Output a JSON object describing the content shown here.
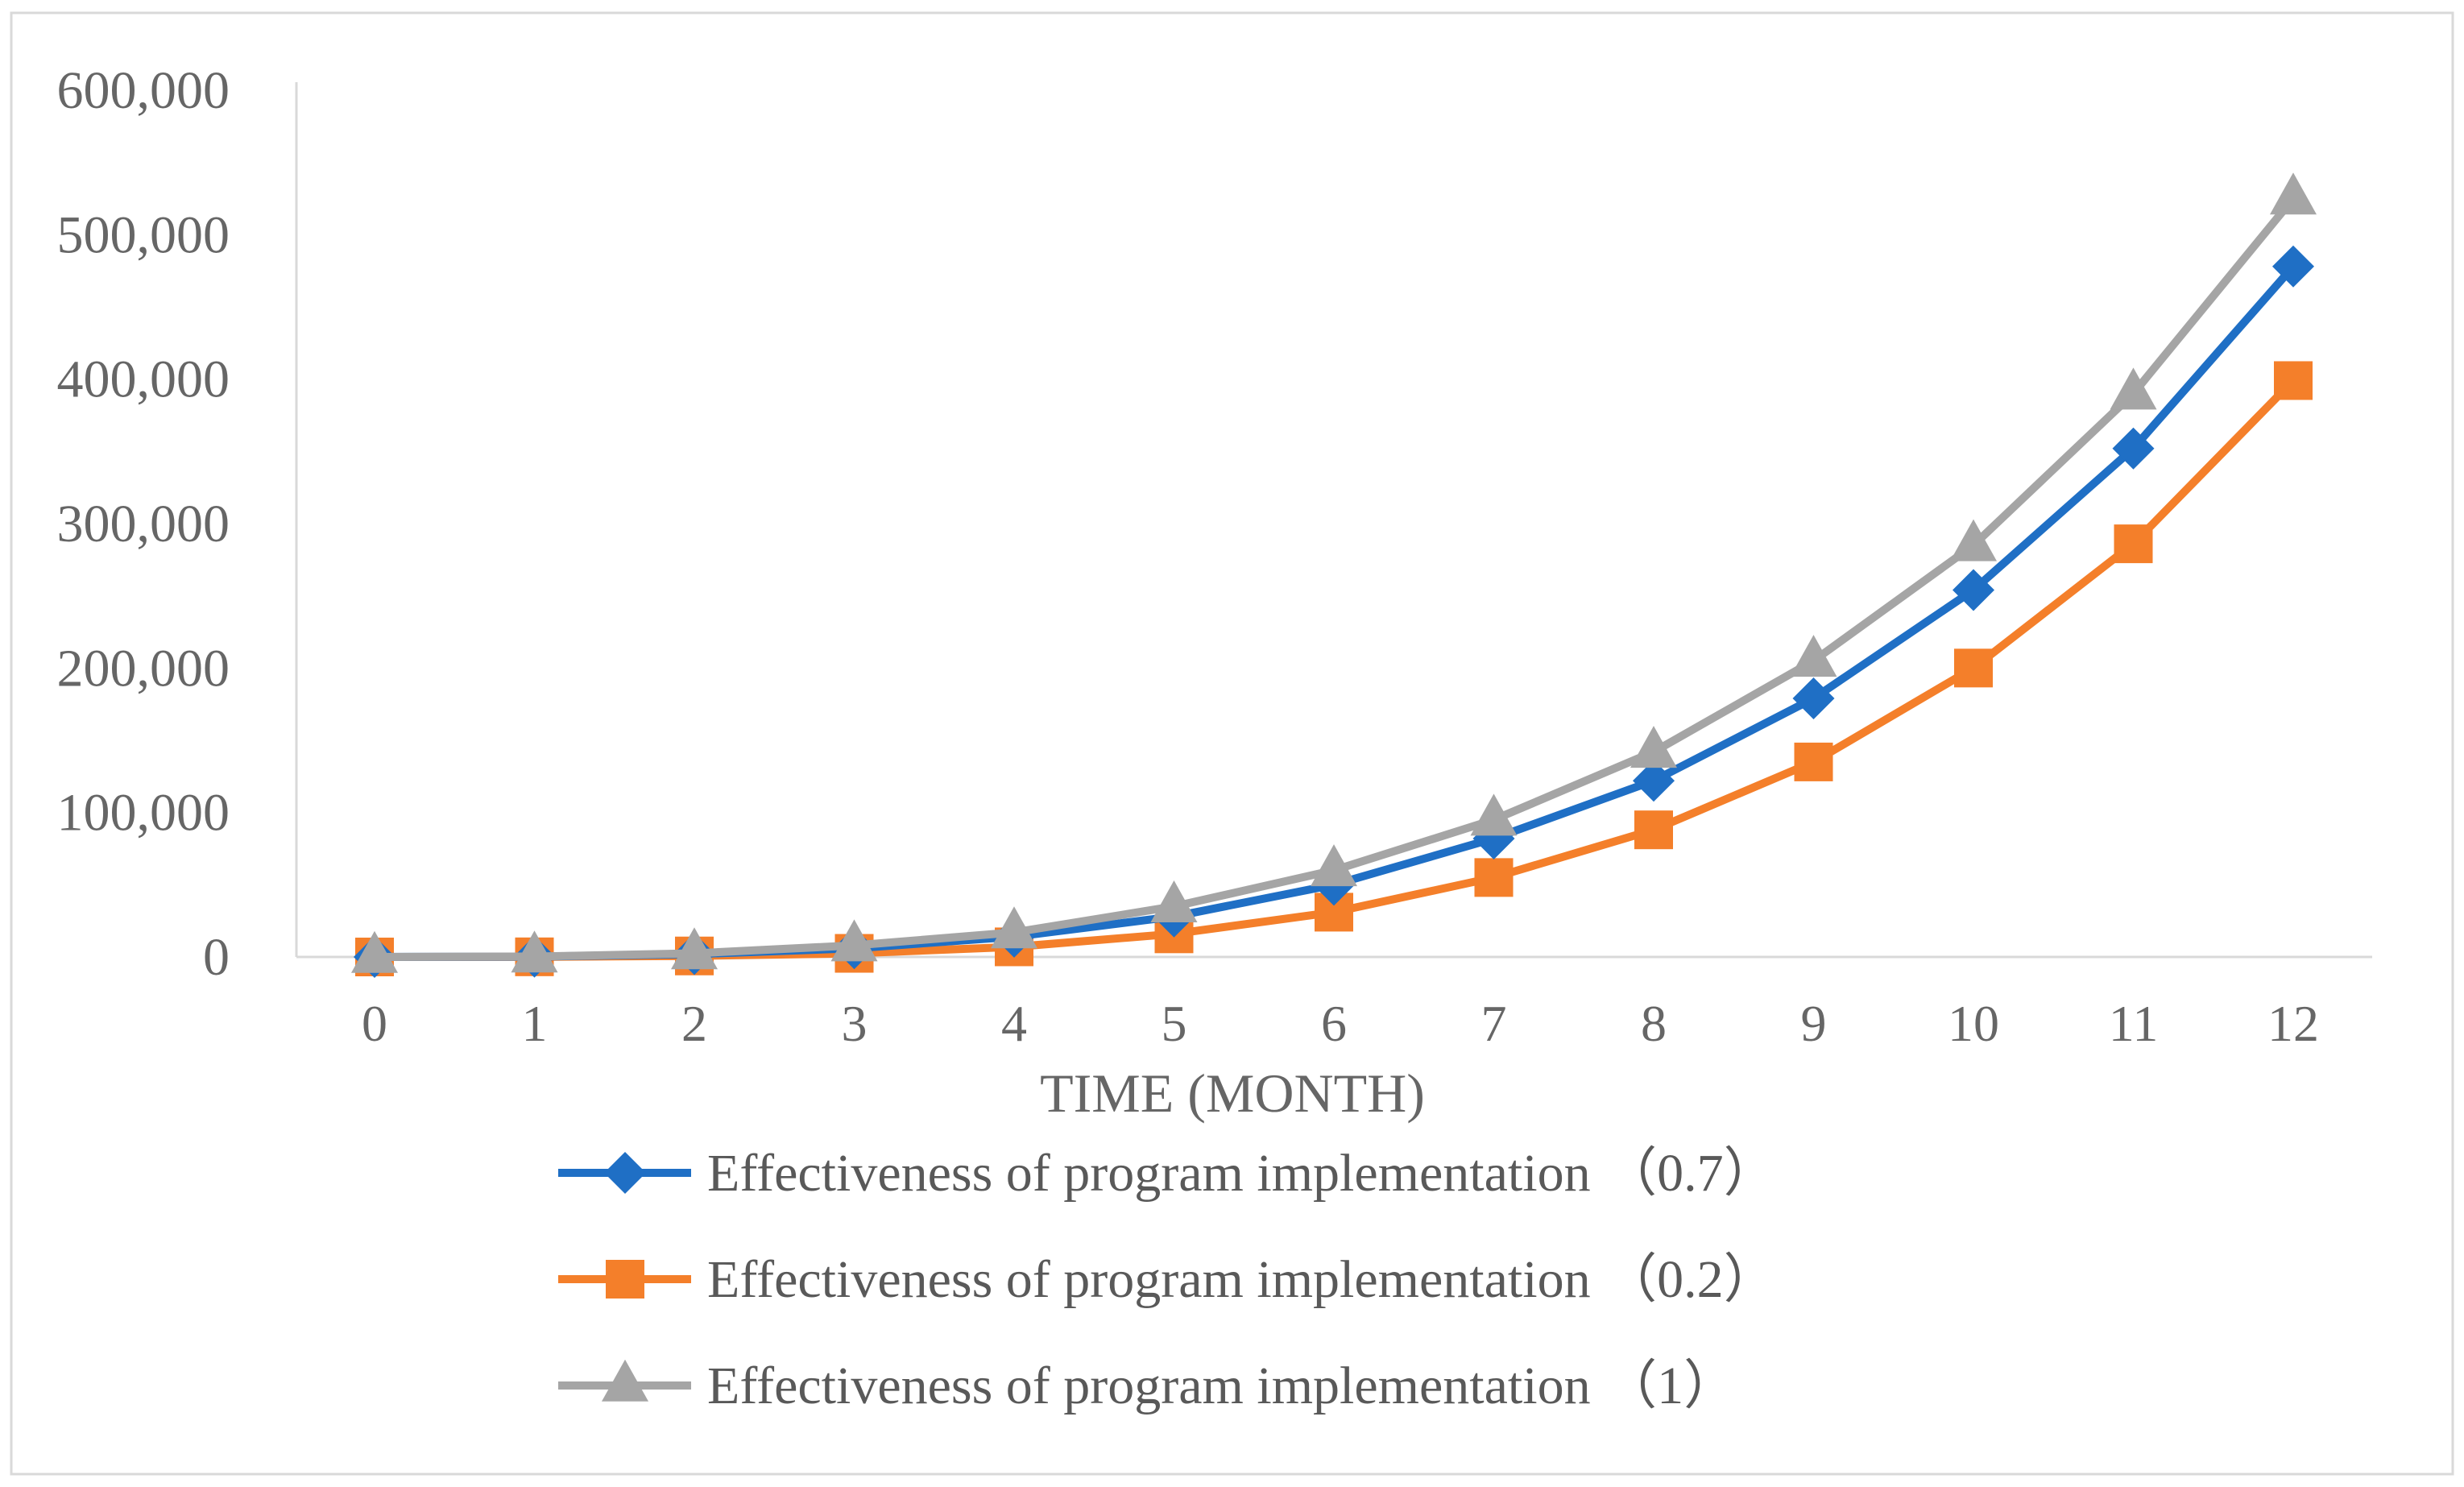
{
  "chart_data": {
    "type": "line",
    "title": "",
    "xlabel": "TIME (MONTH)",
    "ylabel": "",
    "x": [
      0,
      1,
      2,
      3,
      4,
      5,
      6,
      7,
      8,
      9,
      10,
      11,
      12
    ],
    "x_tick_labels": [
      "0",
      "1",
      "2",
      "3",
      "4",
      "5",
      "6",
      "7",
      "8",
      "9",
      "10",
      "11",
      "12"
    ],
    "ylim": [
      0,
      600000
    ],
    "y_ticks": [
      0,
      100000,
      200000,
      300000,
      400000,
      500000,
      600000
    ],
    "y_tick_labels": [
      "0",
      "100,000",
      "200,000",
      "300,000",
      "400,000",
      "500,000",
      "600,000"
    ],
    "grid": false,
    "legend_position": "bottom",
    "series": [
      {
        "name": "Effectiveness of program implementation （0.7）",
        "color": "#1f6fc5",
        "marker": "diamond",
        "values": [
          0,
          200,
          2000,
          6000,
          14000,
          28000,
          50000,
          82000,
          122000,
          179000,
          254000,
          352000,
          478000
        ]
      },
      {
        "name": "Effectiveness of program implementation （0.2）",
        "color": "#f47f2a",
        "marker": "square",
        "values": [
          0,
          100,
          700,
          2500,
          7000,
          16000,
          31000,
          55000,
          88000,
          135000,
          200000,
          286000,
          399000
        ]
      },
      {
        "name": "Effectiveness of program implementation （1）",
        "color": "#a5a5a5",
        "marker": "triangle",
        "values": [
          0,
          300,
          2500,
          8000,
          17000,
          35000,
          60000,
          95000,
          142000,
          205000,
          285000,
          390000,
          525000
        ]
      }
    ]
  }
}
